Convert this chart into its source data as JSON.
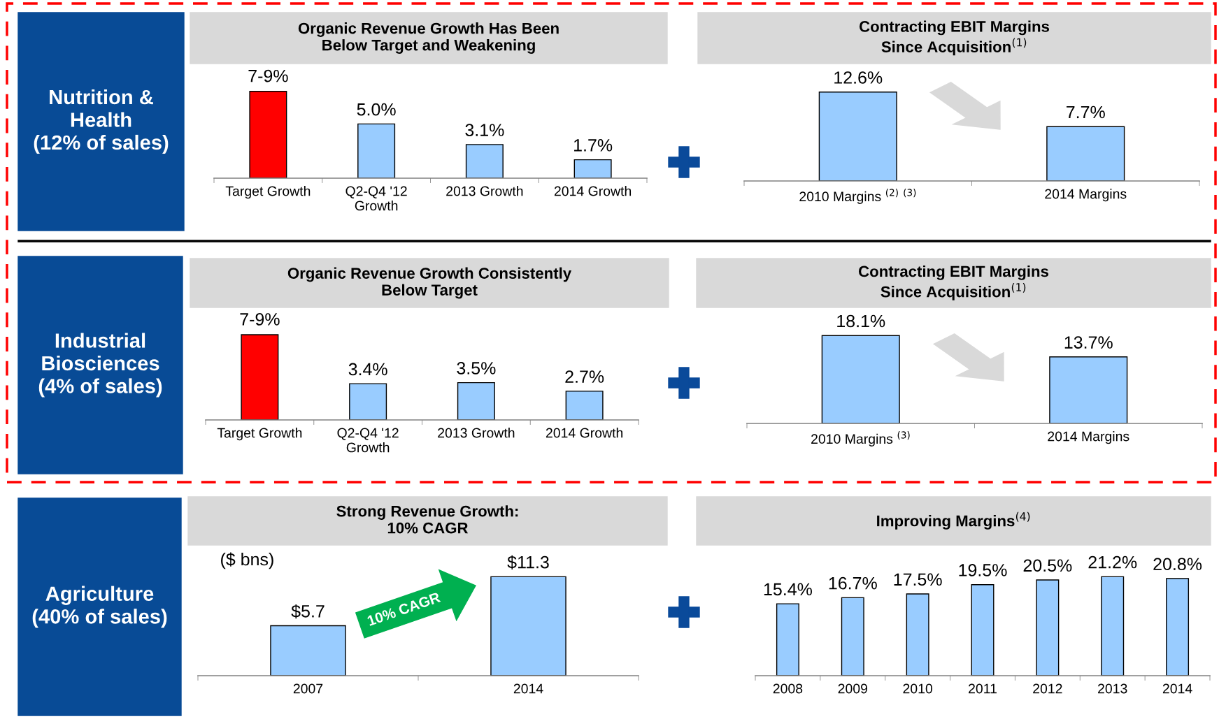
{
  "chart_data": [
    {
      "type": "other",
      "title": "Nutrition &\nHealth\n(12% of sales)"
    },
    {
      "type": "bar",
      "title": "Organic Revenue Growth Has Been\nBelow Target and Weakening",
      "categories": [
        "Target Growth",
        "Q2-Q4 '12\nGrowth",
        "2013 Growth",
        "2014 Growth"
      ],
      "values": [
        8,
        5.0,
        3.1,
        1.7
      ],
      "value_labels": [
        null,
        "5.0%",
        "3.1%",
        "1.7%"
      ],
      "colors": [
        "#ff0000",
        "#99ccff",
        "#99ccff",
        "#99ccff"
      ],
      "tick_labels": "x",
      "annotations": [
        {
          "text": "7-9%",
          "x": "Target Growth",
          "y": 8
        }
      ]
    },
    {
      "type": "bar",
      "title": "Contracting EBIT Margins\nSince Acquisition$^{(1)}$",
      "categories": [
        "2010 Margins $^{(2)}$ $^{(3)}$",
        "2014 Margins"
      ],
      "values": [
        12.6,
        7.7
      ],
      "value_labels": [
        "12.6%",
        "7.7%"
      ],
      "colors": [
        "#99ccff",
        "#99ccff"
      ],
      "tick_labels": "x"
    },
    {
      "type": "other",
      "title": "Industrial\nBiosciences\n(4% of sales)"
    },
    {
      "type": "bar",
      "title": "Organic Revenue Growth Consistently\nBelow Target",
      "categories": [
        "Target Growth",
        "Q2-Q4 '12\nGrowth",
        "2013 Growth",
        "2014 Growth"
      ],
      "values": [
        8,
        3.4,
        3.5,
        2.7
      ],
      "value_labels": [
        null,
        "3.4%",
        "3.5%",
        "2.7%"
      ],
      "colors": [
        "#ff0000",
        "#99ccff",
        "#99ccff",
        "#99ccff"
      ],
      "tick_labels": "x",
      "annotations": [
        {
          "text": "7-9%",
          "x": "Target Growth",
          "y": 8
        }
      ]
    },
    {
      "type": "bar",
      "title": "Contracting EBIT Margins\nSince Acquisition$^{(1)}$",
      "categories": [
        "2010 Margins $^{(3)}$",
        "2014 Margins"
      ],
      "values": [
        18.1,
        13.7
      ],
      "value_labels": [
        "18.1%",
        "13.7%"
      ],
      "colors": [
        "#99ccff",
        "#99ccff"
      ],
      "tick_labels": "x"
    },
    {
      "type": "other",
      "title": "Agriculture\n(40% of sales)"
    },
    {
      "type": "bar",
      "title": "Strong Revenue Growth:\n10% CAGR",
      "categories": [
        "2007",
        "2014"
      ],
      "values": [
        5.7,
        11.3
      ],
      "value_labels": [
        "$5.7",
        "$11.3"
      ],
      "colors": [
        "#99ccff",
        "#99ccff"
      ],
      "tick_labels": "x",
      "annotations": [
        "($ bns)",
        "10% CAGR"
      ]
    },
    {
      "type": "bar",
      "title": "Improving Margins$^{(4)}$",
      "categories": [
        "2008",
        "2009",
        "2010",
        "2011",
        "2012",
        "2013",
        "2014"
      ],
      "values": [
        15.4,
        16.7,
        17.5,
        19.5,
        20.5,
        21.2,
        20.8
      ],
      "value_labels": [
        "15.4%",
        "16.7%",
        "17.5%",
        "19.5%",
        "20.5%",
        "21.2%",
        "20.8%"
      ],
      "colors": [
        "#99ccff",
        "#99ccff",
        "#99ccff",
        "#99ccff",
        "#99ccff",
        "#99ccff",
        "#99ccff"
      ],
      "tick_labels": "x"
    }
  ]
}
